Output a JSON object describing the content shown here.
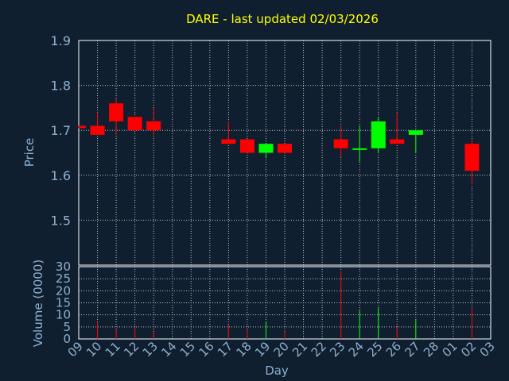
{
  "title": "DARE - last updated 02/03/2026",
  "colors": {
    "background": "#0f1f30",
    "title": "#ffff00",
    "axis_text": "#8fb0d0",
    "grid": "#c0c0c0",
    "frame": "#ffffff",
    "up": "#00ff00",
    "down": "#ff0000"
  },
  "chart_data": {
    "type": "candlestick",
    "x_ticks": [
      "09",
      "10",
      "11",
      "12",
      "13",
      "14",
      "15",
      "16",
      "17",
      "18",
      "19",
      "20",
      "21",
      "22",
      "23",
      "24",
      "25",
      "26",
      "27",
      "28",
      "01",
      "02",
      "03"
    ],
    "xlabel": "Day",
    "price_panel": {
      "ylabel": "Price",
      "ylim": [
        1.4,
        1.9
      ],
      "y_ticks": [
        "1.5",
        "1.6",
        "1.7",
        "1.8",
        "1.9"
      ],
      "grid": true
    },
    "volume_panel": {
      "ylabel": "Volume (0000)",
      "ylim": [
        0,
        30
      ],
      "y_ticks": [
        "0",
        "5",
        "10",
        "15",
        "20",
        "25",
        "30"
      ],
      "grid": true
    },
    "candles": [
      {
        "day": "09",
        "open": 1.71,
        "high": 1.71,
        "low": 1.705,
        "close": 1.705,
        "volume": 0
      },
      {
        "day": "10",
        "open": 1.71,
        "high": 1.74,
        "low": 1.69,
        "close": 1.69,
        "volume": 7
      },
      {
        "day": "11",
        "open": 1.76,
        "high": 1.77,
        "low": 1.69,
        "close": 1.72,
        "volume": 4
      },
      {
        "day": "12",
        "open": 1.73,
        "high": 1.73,
        "low": 1.7,
        "close": 1.7,
        "volume": 5
      },
      {
        "day": "13",
        "open": 1.72,
        "high": 1.75,
        "low": 1.69,
        "close": 1.7,
        "volume": 3
      },
      {
        "day": "17",
        "open": 1.68,
        "high": 1.72,
        "low": 1.67,
        "close": 1.67,
        "volume": 6
      },
      {
        "day": "18",
        "open": 1.68,
        "high": 1.68,
        "low": 1.65,
        "close": 1.65,
        "volume": 4
      },
      {
        "day": "19",
        "open": 1.65,
        "high": 1.67,
        "low": 1.64,
        "close": 1.67,
        "volume": 7
      },
      {
        "day": "20",
        "open": 1.67,
        "high": 1.67,
        "low": 1.65,
        "close": 1.65,
        "volume": 3
      },
      {
        "day": "23",
        "open": 1.68,
        "high": 1.71,
        "low": 1.64,
        "close": 1.66,
        "volume": 28
      },
      {
        "day": "24",
        "open": 1.66,
        "high": 1.71,
        "low": 1.63,
        "close": 1.66,
        "volume": 12
      },
      {
        "day": "25",
        "open": 1.66,
        "high": 1.73,
        "low": 1.65,
        "close": 1.72,
        "volume": 13
      },
      {
        "day": "26",
        "open": 1.68,
        "high": 1.74,
        "low": 1.67,
        "close": 1.67,
        "volume": 5
      },
      {
        "day": "27",
        "open": 1.69,
        "high": 1.7,
        "low": 1.65,
        "close": 1.7,
        "volume": 8
      },
      {
        "day": "02",
        "open": 1.67,
        "high": 1.68,
        "low": 1.58,
        "close": 1.61,
        "volume": 13
      }
    ]
  }
}
